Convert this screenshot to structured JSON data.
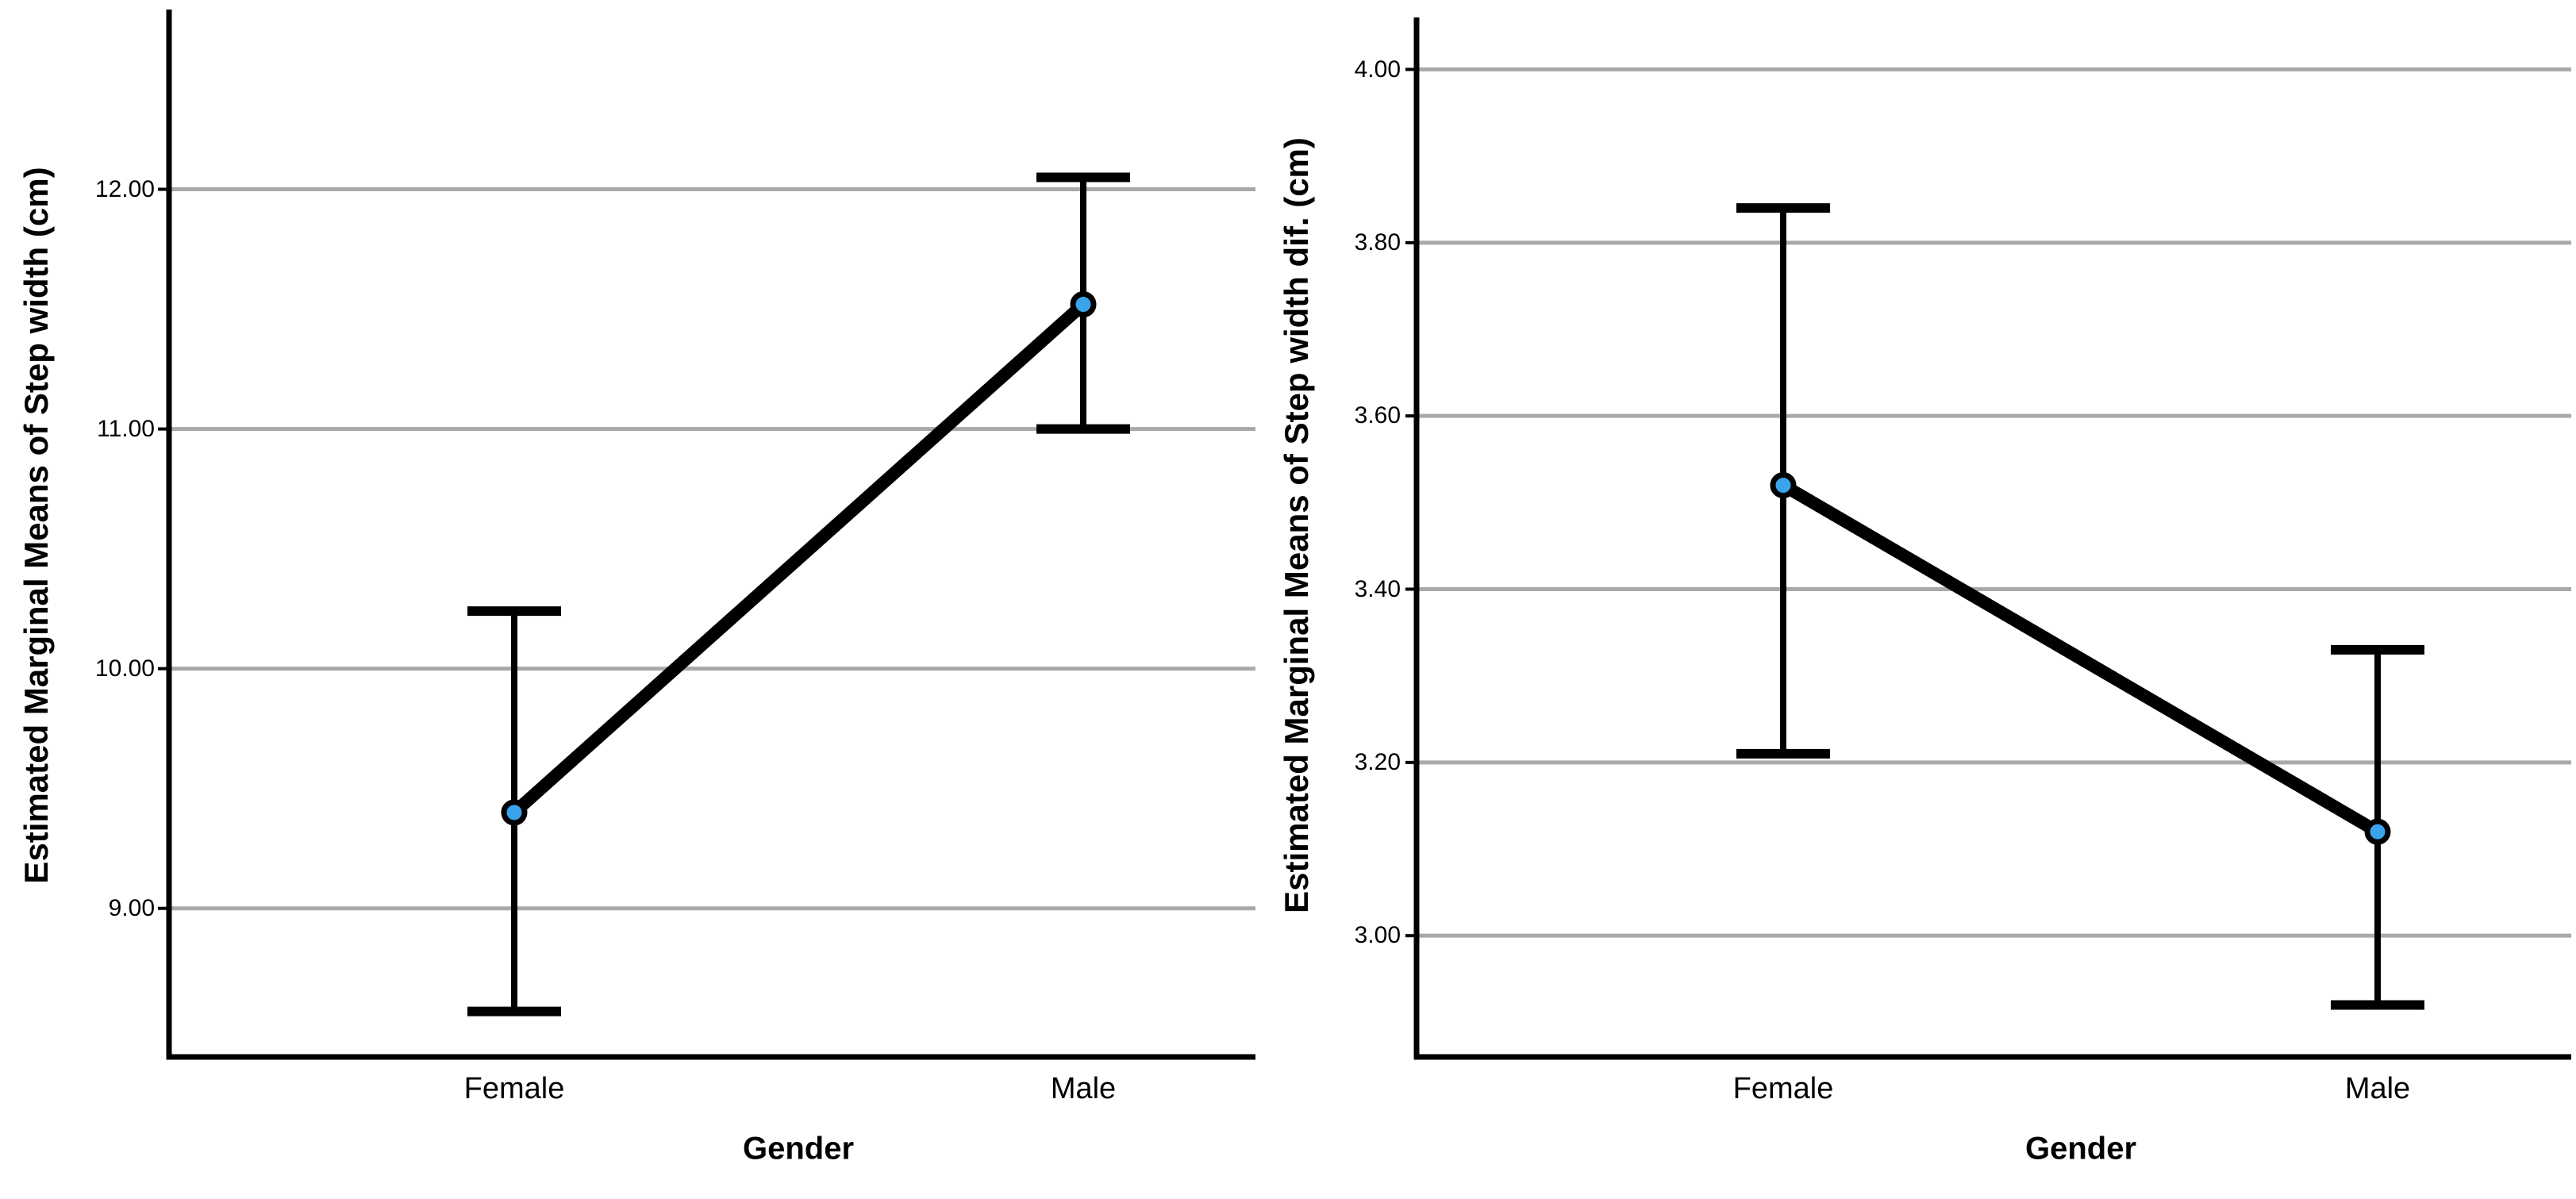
{
  "figure": {
    "background": "#ffffff"
  },
  "chart_data": [
    {
      "type": "line",
      "title": "",
      "ylabel": "Estimated Marginal Means of Step width (cm)",
      "xlabel": "Gender",
      "categories": [
        "Female",
        "Male"
      ],
      "series": [
        {
          "name": "Estimated Marginal Means of Step width",
          "values": [
            9.4,
            11.52
          ],
          "ci_low": [
            8.57,
            11.0
          ],
          "ci_high": [
            10.24,
            12.05
          ]
        }
      ],
      "yticks": [
        9.0,
        10.0,
        11.0,
        12.0
      ],
      "ytick_labels": [
        "9.00",
        "10.00",
        "11.00",
        "12.00"
      ],
      "ylim": [
        8.38,
        12.75
      ],
      "grid": true,
      "legend": false,
      "marker_color": "#3AA4EB",
      "grid_color": "#A9A9A9",
      "axis_color": "#000000",
      "line_color": "#000000"
    },
    {
      "type": "line",
      "title": "",
      "ylabel": "Estimated Marginal Means of Step width dif. (cm)",
      "xlabel": "Gender",
      "categories": [
        "Female",
        "Male"
      ],
      "series": [
        {
          "name": "Estimated Marginal Means of Step width dif.",
          "values": [
            3.52,
            3.12
          ],
          "ci_low": [
            3.21,
            2.92
          ],
          "ci_high": [
            3.84,
            3.33
          ]
        }
      ],
      "yticks": [
        3.0,
        3.2,
        3.4,
        3.6,
        3.8,
        4.0
      ],
      "ytick_labels": [
        "3.00",
        "3.20",
        "3.40",
        "3.60",
        "3.80",
        "4.00"
      ],
      "ylim": [
        2.86,
        4.06
      ],
      "grid": true,
      "legend": false,
      "marker_color": "#3AA4EB",
      "grid_color": "#A9A9A9",
      "axis_color": "#000000",
      "line_color": "#000000"
    }
  ]
}
